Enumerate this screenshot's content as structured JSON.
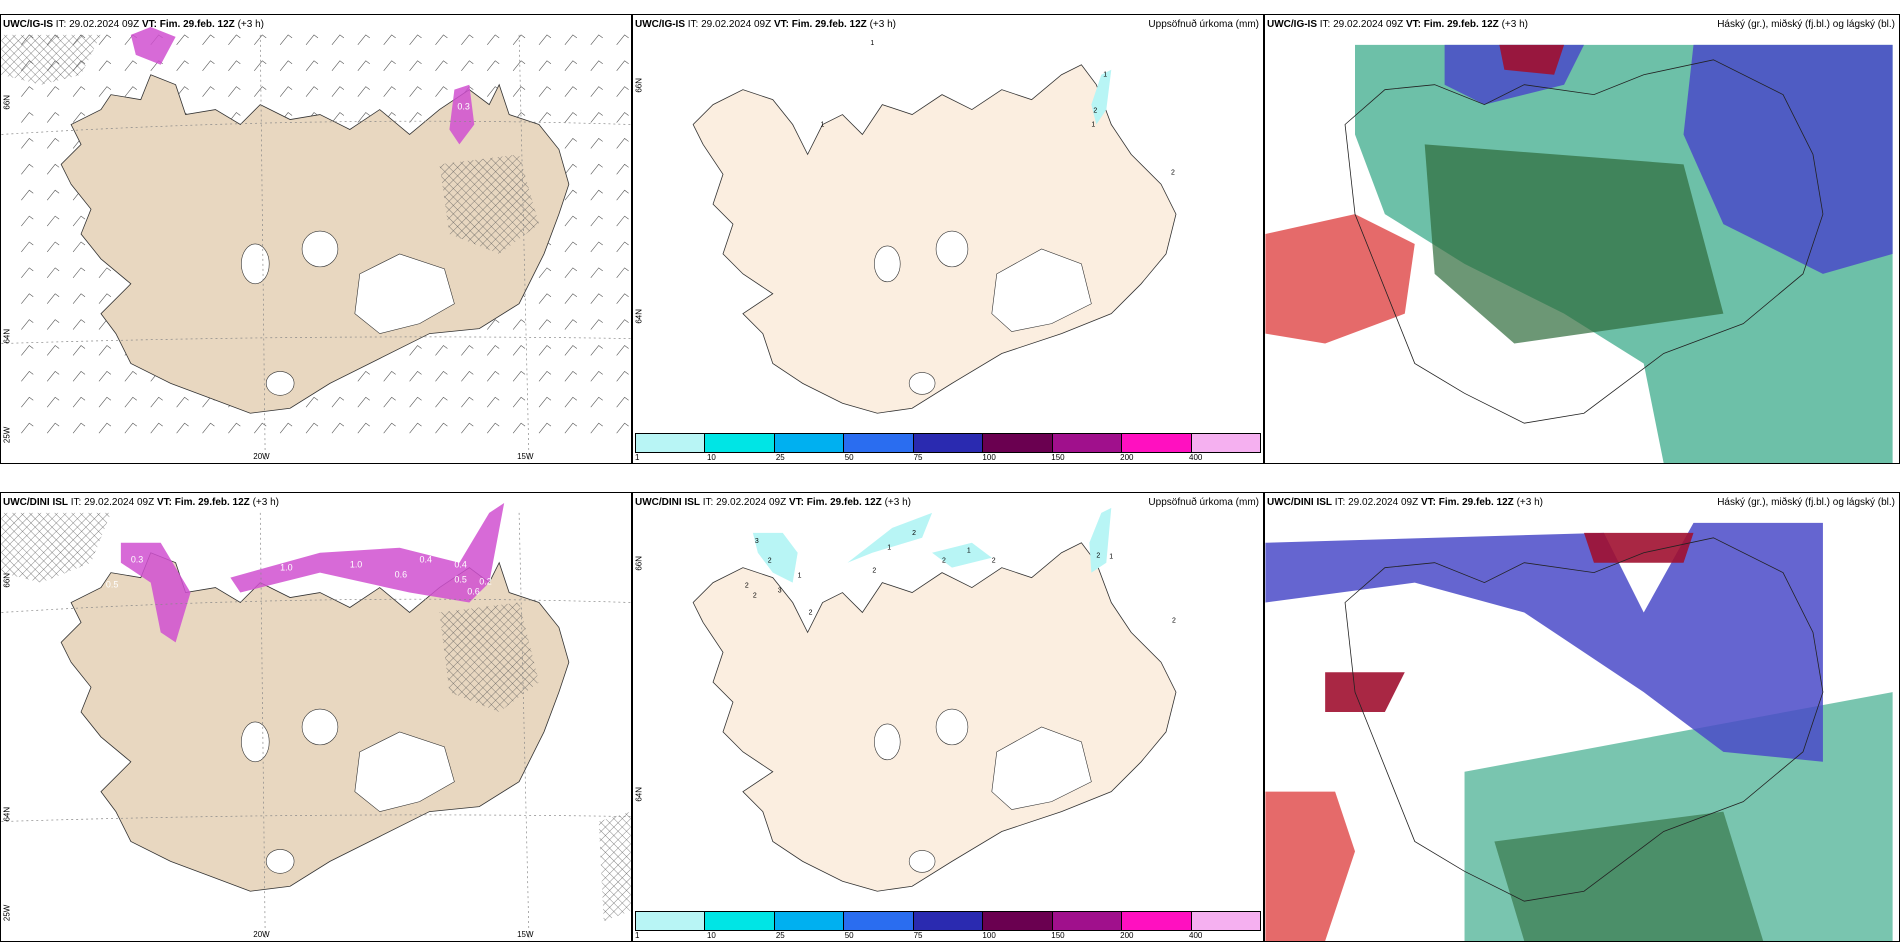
{
  "colors": {
    "land": "#e8d7c0",
    "land_light": "#fbeee0",
    "precip": [
      "#b8f5f5",
      "#00e5e5",
      "#00b0f0",
      "#2a6df0",
      "#2a2ab0",
      "#6a0050",
      "#a0108c",
      "#ff10c0",
      "#f5b0f0"
    ],
    "cloud_high": "#4a4ac8",
    "cloud_mid": "#1f9e7a",
    "cloud_low": "#b04040"
  },
  "rows": [
    {
      "wind_panel": {
        "model": "UWC/IG-IS",
        "it": "IT: 29.02.2024 09Z",
        "vt_label": "VT: Fim. 29.feb. 12Z",
        "lead": "(+3 h)",
        "lon_labels": [
          "20W",
          "15W"
        ],
        "lat_labels": [
          "66N",
          "64N"
        ],
        "corner_label": "25W",
        "values": [
          "0.3",
          "0.3"
        ]
      },
      "precip_panel": {
        "model": "UWC/IG-IS",
        "it": "IT: 29.02.2024 09Z",
        "vt_label": "VT: Fim. 29.feb. 12Z",
        "lead": "(+3 h)",
        "right_title": "Uppsöfnuð úrkoma (mm)",
        "lat_labels": [
          "66N",
          "64N"
        ],
        "marks": [
          "1",
          "2",
          "1",
          "2",
          "1",
          "1"
        ]
      },
      "cloud_panel": {
        "model": "UWC/IG-IS",
        "it": "IT: 29.02.2024 09Z",
        "vt_label": "VT: Fim. 29.feb. 12Z",
        "lead": "(+3 h)",
        "right_title": "Háský (gr.), miðský (fj.bl.) og lágský (bl.)"
      }
    },
    {
      "wind_panel": {
        "model": "UWC/DINI ISL",
        "it": "IT: 29.02.2024 09Z",
        "vt_label": "VT: Fim. 29.feb. 12Z",
        "lead": "(+3 h)",
        "lon_labels": [
          "20W",
          "15W"
        ],
        "lat_labels": [
          "66N",
          "64N"
        ],
        "corner_label": "25W",
        "values": [
          "0.3",
          "0.4",
          "1.0",
          "1.0",
          "0.6",
          "0.4",
          "0.5",
          "0.6",
          "0.2",
          "0.5"
        ]
      },
      "precip_panel": {
        "model": "UWC/DINI ISL",
        "it": "IT: 29.02.2024 09Z",
        "vt_label": "VT: Fim. 29.feb. 12Z",
        "lead": "(+3 h)",
        "right_title": "Uppsöfnuð úrkoma (mm)",
        "lat_labels": [
          "66N",
          "64N"
        ],
        "marks": [
          "3",
          "2",
          "2",
          "2",
          "1",
          "2",
          "3",
          "2",
          "1",
          "2",
          "2",
          "1",
          "2",
          "2",
          "1",
          "2"
        ]
      },
      "cloud_panel": {
        "model": "UWC/DINI ISL",
        "it": "IT: 29.02.2024 09Z",
        "vt_label": "VT: Fim. 29.feb. 12Z",
        "lead": "(+3 h)",
        "right_title": "Háský (gr.), miðský (fj.bl.) og lágský (bl.)"
      }
    }
  ],
  "colorbar_ticks": [
    "1",
    "10",
    "25",
    "50",
    "75",
    "100",
    "150",
    "200",
    "400"
  ]
}
